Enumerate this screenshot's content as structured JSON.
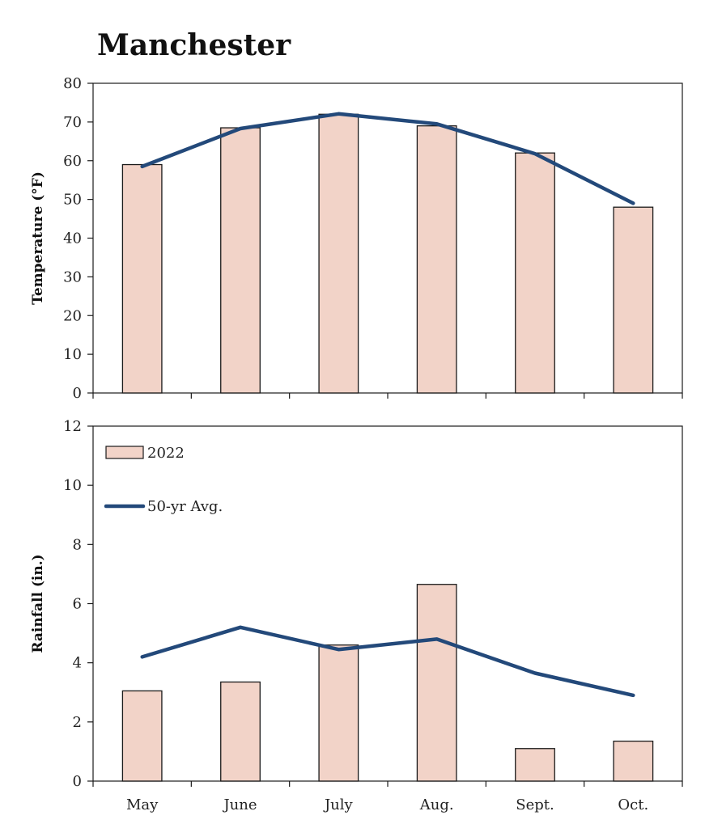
{
  "title": "Manchester",
  "colors": {
    "bar_fill": "#f2d3c8",
    "bar_stroke": "#1a1a1a",
    "line": "#23497a",
    "axis": "#1a1a1a"
  },
  "legend": {
    "bar_label": "2022",
    "line_label": "50-yr Avg."
  },
  "chart_data": [
    {
      "type": "bar",
      "title": "Manchester",
      "ylabel": "Temperature (°F)",
      "xlabel": "",
      "categories": [
        "May",
        "June",
        "July",
        "Aug.",
        "Sept.",
        "Oct."
      ],
      "ylim": [
        0,
        80
      ],
      "yticks": [
        0,
        10,
        20,
        30,
        40,
        50,
        60,
        70,
        80
      ],
      "grid": false,
      "series": [
        {
          "name": "2022",
          "kind": "bar",
          "values": [
            59,
            68.5,
            72,
            69,
            62,
            48
          ]
        },
        {
          "name": "50-yr Avg.",
          "kind": "line",
          "values": [
            58.5,
            68.3,
            72.1,
            69.5,
            61.8,
            49
          ]
        }
      ]
    },
    {
      "type": "bar",
      "ylabel": "Rainfall (in.)",
      "xlabel": "",
      "categories": [
        "May",
        "June",
        "July",
        "Aug.",
        "Sept.",
        "Oct."
      ],
      "ylim": [
        0,
        12
      ],
      "yticks": [
        0,
        2,
        4,
        6,
        8,
        10,
        12
      ],
      "grid": false,
      "legend_position": "top-left",
      "series": [
        {
          "name": "2022",
          "kind": "bar",
          "values": [
            3.05,
            3.35,
            4.6,
            6.65,
            1.1,
            1.35
          ]
        },
        {
          "name": "50-yr Avg.",
          "kind": "line",
          "values": [
            4.2,
            5.2,
            4.45,
            4.8,
            3.65,
            2.9
          ]
        }
      ]
    }
  ]
}
